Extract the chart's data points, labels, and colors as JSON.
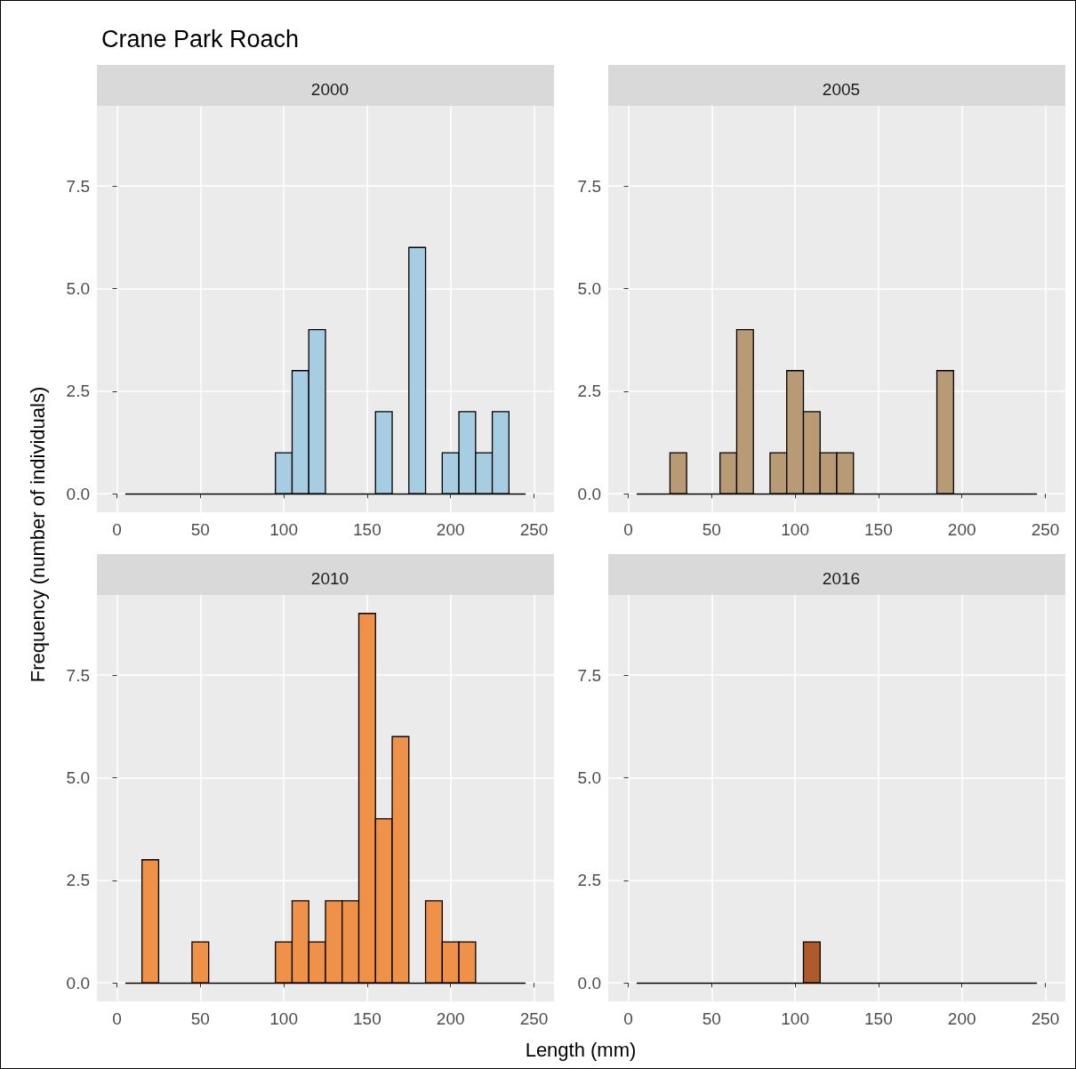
{
  "chart_data": [
    {
      "type": "histogram",
      "title": "Crane Park Roach",
      "subtitle": "2000",
      "ylabel": "Frequency (number of individuals)",
      "bins": [
        5,
        15,
        25,
        35,
        45,
        55,
        65,
        75,
        85,
        95,
        105,
        115,
        125,
        135,
        145,
        155,
        165,
        175,
        185,
        195,
        205,
        215,
        225,
        235,
        245
      ],
      "values": [
        0,
        0,
        0,
        0,
        0,
        0,
        0,
        0,
        0,
        1,
        3,
        4,
        0,
        0,
        0,
        2,
        0,
        6,
        0,
        1,
        2,
        1,
        2,
        0
      ],
      "color": "#a6cde2",
      "ref_lines": [
        {
          "axis": "y",
          "value": 0,
          "color": "#000000"
        }
      ],
      "xlim": [
        -12,
        262
      ],
      "xticks": [
        0,
        50,
        100,
        150,
        200,
        250
      ],
      "ylim": [
        -0.45,
        9.45
      ],
      "yticks": [
        {
          "value": 0,
          "label": "0.0"
        },
        {
          "value": 2.5,
          "label": "2.5"
        },
        {
          "value": 5,
          "label": "5.0"
        },
        {
          "value": 7.5,
          "label": "7.5"
        }
      ],
      "grid": true
    },
    {
      "type": "histogram",
      "subtitle": "2005",
      "bins": [
        5,
        15,
        25,
        35,
        45,
        55,
        65,
        75,
        85,
        95,
        105,
        115,
        125,
        135,
        145,
        155,
        165,
        175,
        185,
        195,
        205,
        215,
        225,
        235,
        245
      ],
      "values": [
        0,
        0,
        1,
        0,
        0,
        1,
        4,
        0,
        1,
        3,
        2,
        1,
        1,
        0,
        0,
        0,
        0,
        0,
        3,
        0,
        0,
        0,
        0,
        0
      ],
      "color": "#b89b74",
      "ref_lines": [
        {
          "axis": "y",
          "value": 0,
          "color": "#000000"
        }
      ],
      "xlim": [
        -12,
        262
      ],
      "xticks": [
        0,
        50,
        100,
        150,
        200,
        250
      ],
      "ylim": [
        -0.45,
        9.45
      ],
      "yticks": [
        {
          "value": 0,
          "label": "0.0"
        },
        {
          "value": 2.5,
          "label": "2.5"
        },
        {
          "value": 5,
          "label": "5.0"
        },
        {
          "value": 7.5,
          "label": "7.5"
        }
      ],
      "grid": true
    },
    {
      "type": "histogram",
      "subtitle": "2010",
      "xlabel": "Length (mm)",
      "bins": [
        5,
        15,
        25,
        35,
        45,
        55,
        65,
        75,
        85,
        95,
        105,
        115,
        125,
        135,
        145,
        155,
        165,
        175,
        185,
        195,
        205,
        215,
        225,
        235,
        245
      ],
      "values": [
        0,
        3,
        0,
        0,
        1,
        0,
        0,
        0,
        0,
        1,
        2,
        1,
        2,
        2,
        9,
        4,
        6,
        0,
        2,
        1,
        1,
        0,
        0,
        0
      ],
      "color": "#f0914a",
      "ref_lines": [
        {
          "axis": "y",
          "value": 0,
          "color": "#000000"
        }
      ],
      "xlim": [
        -12,
        262
      ],
      "xticks": [
        0,
        50,
        100,
        150,
        200,
        250
      ],
      "ylim": [
        -0.45,
        9.45
      ],
      "yticks": [
        {
          "value": 0,
          "label": "0.0"
        },
        {
          "value": 2.5,
          "label": "2.5"
        },
        {
          "value": 5,
          "label": "5.0"
        },
        {
          "value": 7.5,
          "label": "7.5"
        }
      ],
      "grid": true
    },
    {
      "type": "histogram",
      "subtitle": "2016",
      "bins": [
        5,
        15,
        25,
        35,
        45,
        55,
        65,
        75,
        85,
        95,
        105,
        115,
        125,
        135,
        145,
        155,
        165,
        175,
        185,
        195,
        205,
        215,
        225,
        235,
        245
      ],
      "values": [
        0,
        0,
        0,
        0,
        0,
        0,
        0,
        0,
        0,
        0,
        1,
        0,
        0,
        0,
        0,
        0,
        0,
        0,
        0,
        0,
        0,
        0,
        0,
        0
      ],
      "color": "#b0592a",
      "ref_lines": [
        {
          "axis": "y",
          "value": 0,
          "color": "#000000"
        }
      ],
      "xlim": [
        -12,
        262
      ],
      "xticks": [
        0,
        50,
        100,
        150,
        200,
        250
      ],
      "ylim": [
        -0.45,
        9.45
      ],
      "yticks": [
        {
          "value": 0,
          "label": "0.0"
        },
        {
          "value": 2.5,
          "label": "2.5"
        },
        {
          "value": 5,
          "label": "5.0"
        },
        {
          "value": 7.5,
          "label": "7.5"
        }
      ],
      "grid": true
    }
  ]
}
